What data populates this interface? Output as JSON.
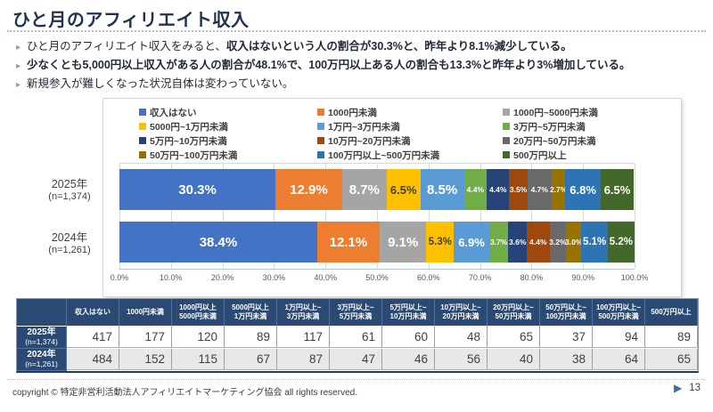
{
  "slide": {
    "title": "ひと月のアフィリエイト収入",
    "bullets": [
      {
        "parts": [
          {
            "text": "ひと月のアフィリエイト収入をみると、",
            "bold": false
          },
          {
            "text": "収入はないという人の割合が30.3%と、昨年より8.1%減少している。",
            "bold": true
          }
        ]
      },
      {
        "parts": [
          {
            "text": "少なくとも5,000円以上収入がある人の割合が48.1%で、100万円以上ある人の割合も13.3%と昨年より3%増加している。",
            "bold": true
          }
        ]
      },
      {
        "parts": [
          {
            "text": "新規参入が難しくなった状況自体は変わっていない。",
            "bold": false
          }
        ]
      }
    ],
    "footer": {
      "copyright": "copyright © 特定非営利活動法人アフィリエイトマーケティング協会 all rights reserved.",
      "page_number": "13"
    }
  },
  "chart_data": {
    "type": "bar",
    "subtype": "horizontal_stacked_100pct",
    "unit": "%",
    "legend_position": "top",
    "grid": true,
    "xlim": [
      0,
      100
    ],
    "x_ticks": [
      "0.0%",
      "10.0%",
      "20.0%",
      "30.0%",
      "40.0%",
      "50.0%",
      "60.0%",
      "70.0%",
      "80.0%",
      "90.0%",
      "100.0%"
    ],
    "categories": [
      "収入はない",
      "1000円未満",
      "1000円~5000円未満",
      "5000円~1万円未満",
      "1万円~3万円未満",
      "3万円~5万円未満",
      "5万円~10万円未満",
      "10万円~20万円未満",
      "20万円~50万円未満",
      "50万円~100万円未満",
      "100万円以上~500万円未満",
      "500万円以上"
    ],
    "colors": [
      "#4472C4",
      "#ED7D31",
      "#A5A5A5",
      "#FFC000",
      "#5B9BD5",
      "#70AD47",
      "#264478",
      "#9E480E",
      "#696969",
      "#997300",
      "#2E74B5",
      "#43682B"
    ],
    "label_colors": [
      "#FFFFFF",
      "#FFFFFF",
      "#FFFFFF",
      "#3F3F3F",
      "#FFFFFF",
      "#FFFFFF",
      "#FFFFFF",
      "#FFFFFF",
      "#FFFFFF",
      "#FFFFFF",
      "#FFFFFF",
      "#FFFFFF"
    ],
    "series": [
      {
        "name": "2025年",
        "n_label": "(n=1,374)",
        "values": [
          30.3,
          12.9,
          8.7,
          6.5,
          8.5,
          4.4,
          4.4,
          3.5,
          4.7,
          2.7,
          6.8,
          6.5
        ]
      },
      {
        "name": "2024年",
        "n_label": "(n=1,261)",
        "values": [
          38.4,
          12.1,
          9.1,
          5.3,
          6.9,
          3.7,
          3.6,
          4.4,
          3.2,
          3.0,
          5.1,
          5.2
        ]
      }
    ]
  },
  "table": {
    "header_bg": "#2A4A73",
    "alt_row_bg": "#E8E8E8",
    "col_headers": [
      [
        ""
      ],
      [
        "収入はない"
      ],
      [
        "1000円未満"
      ],
      [
        "1000円以上",
        "5000円未満"
      ],
      [
        "5000円以上",
        "1万円未満"
      ],
      [
        "1万円以上~",
        "3万円未満"
      ],
      [
        "3万円以上~",
        "5万円未満"
      ],
      [
        "5万円以上~",
        "10万円未満"
      ],
      [
        "10万円以上~",
        "20万円未満"
      ],
      [
        "20万円以上~",
        "50万円未満"
      ],
      [
        "50万円以上~",
        "100万円未満"
      ],
      [
        "100万円以上~",
        "500万円未満"
      ],
      [
        "500万円以上"
      ]
    ],
    "rows": [
      {
        "label": "2025年",
        "sub": "(n=1,374)",
        "values": [
          417,
          177,
          120,
          89,
          117,
          61,
          60,
          48,
          65,
          37,
          94,
          89
        ]
      },
      {
        "label": "2024年",
        "sub": "(n=1,261)",
        "values": [
          484,
          152,
          115,
          67,
          87,
          47,
          46,
          56,
          40,
          38,
          64,
          65
        ]
      }
    ]
  }
}
